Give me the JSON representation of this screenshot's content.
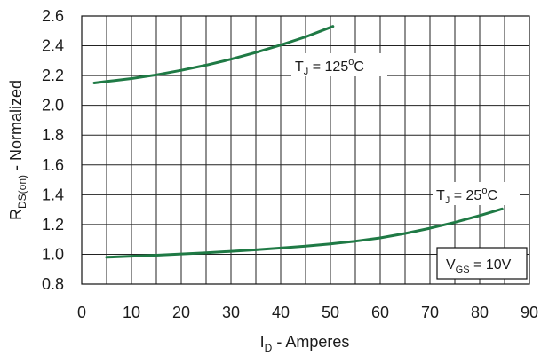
{
  "chart_data": {
    "type": "line",
    "xlabel": {
      "main": "I",
      "sub": "D",
      "rest": " - Amperes"
    },
    "ylabel": {
      "main": "R",
      "sub": "DS(on)",
      "rest": " - Normalized"
    },
    "xlim": [
      0,
      90
    ],
    "ylim": [
      0.8,
      2.6
    ],
    "xticks": [
      "0",
      "10",
      "20",
      "30",
      "40",
      "50",
      "60",
      "70",
      "80",
      "90"
    ],
    "yticks": [
      "0.8",
      "1.0",
      "1.2",
      "1.4",
      "1.6",
      "1.8",
      "2.0",
      "2.2",
      "2.4",
      "2.6"
    ],
    "grid": true,
    "series_color": "#1f7a45",
    "series": [
      {
        "name": "T_J = 125°C",
        "x": [
          2.5,
          5,
          10,
          15,
          20,
          25,
          30,
          35,
          40,
          45,
          50.5
        ],
        "y": [
          2.15,
          2.16,
          2.18,
          2.205,
          2.235,
          2.27,
          2.31,
          2.355,
          2.405,
          2.46,
          2.53
        ]
      },
      {
        "name": "T_J = 25°C",
        "x": [
          5,
          10,
          15,
          20,
          25,
          30,
          35,
          40,
          45,
          50,
          55,
          60,
          65,
          70,
          75,
          80,
          84.5
        ],
        "y": [
          0.98,
          0.987,
          0.994,
          1.002,
          1.01,
          1.02,
          1.03,
          1.042,
          1.055,
          1.07,
          1.088,
          1.11,
          1.14,
          1.175,
          1.215,
          1.26,
          1.305
        ]
      }
    ],
    "annotations": {
      "t125": {
        "main": "T",
        "sub": "J",
        "eq": " = 125",
        "sup": "o",
        "unit": "C"
      },
      "t25": {
        "main": "T",
        "sub": "J",
        "eq": " = 25",
        "sup": "o",
        "unit": "C"
      },
      "vgs": {
        "main": "V",
        "sub": "GS",
        "eq": " = 10V"
      }
    }
  }
}
